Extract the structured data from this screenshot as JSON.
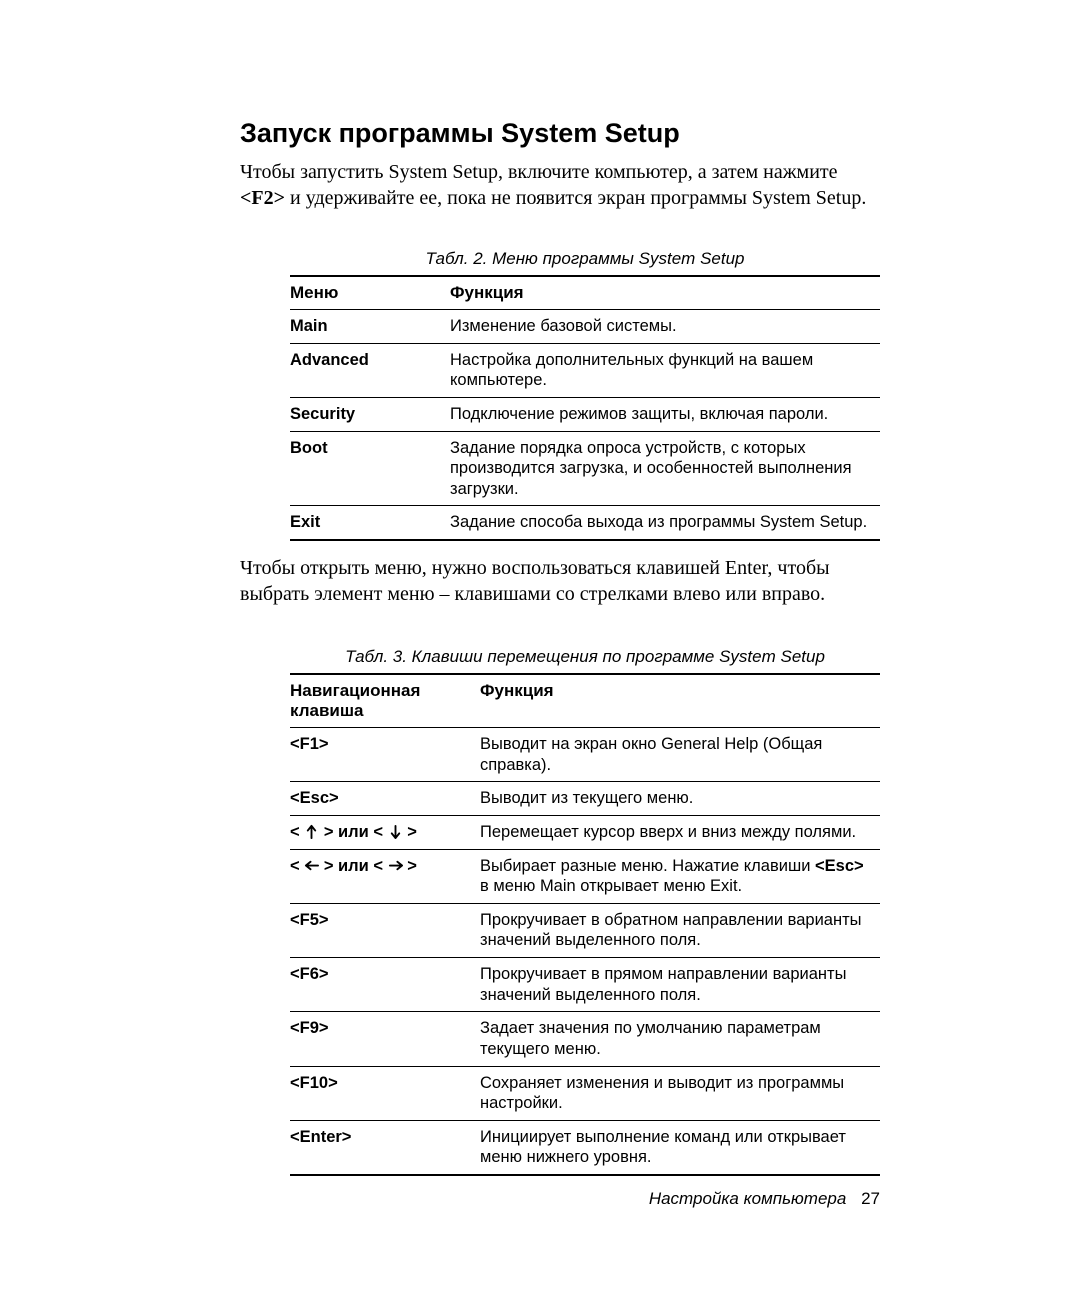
{
  "heading": "Запуск программы System Setup",
  "para1_pre": "Чтобы запустить System Setup, включите компьютер, а затем нажмите ",
  "para1_key": "<F2>",
  "para1_post": " и удерживайте ее, пока не появится экран программы System Setup.",
  "table1": {
    "caption": "Табл. 2.   Меню программы System Setup",
    "headers": {
      "col1": "Меню",
      "col2": "Функция"
    },
    "rows": [
      {
        "menu": "Main",
        "func": "Изменение базовой системы."
      },
      {
        "menu": "Advanced",
        "func": "Настройка дополнительных функций на вашем компьютере."
      },
      {
        "menu": "Security",
        "func": "Подключение режимов защиты, включая пароли."
      },
      {
        "menu": "Boot",
        "func": "Задание порядка опроса устройств, с которых производится загрузка, и особенностей выполнения загрузки."
      },
      {
        "menu": "Exit",
        "func": "Задание способа выхода из программы System Setup."
      }
    ]
  },
  "para2": "Чтобы открыть меню, нужно воспользоваться клавишей Enter, чтобы выбрать элемент меню – клавишами со стрелками влево или вправо.",
  "table2": {
    "caption": "Табл. 3.  Клавиши перемещения по программе System Setup",
    "headers": {
      "col1": "Навигационная клавиша",
      "col2": "Функция"
    },
    "rows": [
      {
        "key_html": "<F1>",
        "func": "Выводит на экран окно General Help (Общая справка)."
      },
      {
        "key_html": "<Esc>",
        "func": "Выводит из текущего меню."
      },
      {
        "key_html": "__UPDOWN__",
        "func": "Перемещает курсор вверх и вниз между полями."
      },
      {
        "key_html": "__LEFTRIGHT__",
        "func_html": "Выбирает разные меню. Нажатие клавиши <b>&lt;Esc&gt;</b> в меню Main открывает меню Exit."
      },
      {
        "key_html": "<F5>",
        "func": "Прокручивает в обратном направлении варианты значений выделенного поля."
      },
      {
        "key_html": "<F6>",
        "func": "Прокручивает в прямом направлении варианты значений выделенного поля."
      },
      {
        "key_html": "<F9>",
        "func": "Задает значения по умолчанию параметрам текущего меню."
      },
      {
        "key_html": "<F10>",
        "func": "Сохраняет изменения и выводит из программы настройки."
      },
      {
        "key_html": "<Enter>",
        "func": "Инициирует выполнение команд или открывает меню нижнего уровня."
      }
    ],
    "joiner": " или "
  },
  "footer": {
    "label": "Настройка компьютера",
    "page": "27"
  },
  "colors": {
    "text": "#000000",
    "background": "#ffffff",
    "rule": "#000000"
  }
}
